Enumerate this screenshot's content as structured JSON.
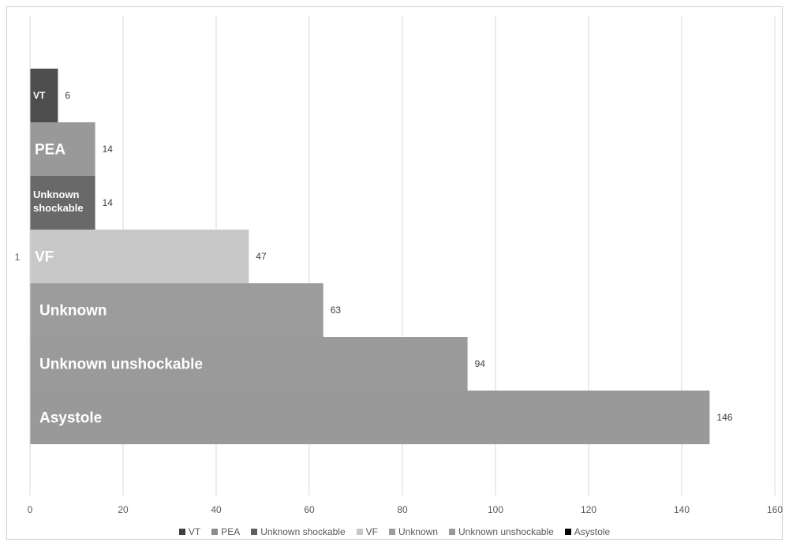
{
  "chart_data": {
    "type": "bar",
    "orientation": "horizontal",
    "stacked": false,
    "category_label": "1",
    "xlim": [
      0,
      160
    ],
    "xticks": [
      0,
      20,
      40,
      60,
      80,
      100,
      120,
      140,
      160
    ],
    "grid": true,
    "legend_position": "bottom",
    "series": [
      {
        "name": "VT",
        "value": 6,
        "color": "#4d4d4d",
        "inside_label": "VT"
      },
      {
        "name": "PEA",
        "value": 14,
        "color": "#999999",
        "inside_label": "PEA"
      },
      {
        "name": "Unknown shockable",
        "value": 14,
        "color": "#696969",
        "inside_label": "Unknown shockable"
      },
      {
        "name": "VF",
        "value": 47,
        "color": "#c8c8c8",
        "inside_label": "VF"
      },
      {
        "name": "Unknown",
        "value": 63,
        "color": "#9c9c9c",
        "inside_label": "Unknown"
      },
      {
        "name": "Unknown unshockable",
        "value": 94,
        "color": "#9a9a9a",
        "inside_label": "Unknown unshockable"
      },
      {
        "name": "Asystole",
        "value": 146,
        "color": "#999999",
        "inside_label": "Asystole"
      }
    ],
    "legend_swatch_colors": [
      "#404040",
      "#8c8c8c",
      "#5e5e5e",
      "#c8c8c8",
      "#9c9c9c",
      "#9a9a9a",
      "#000000"
    ]
  }
}
